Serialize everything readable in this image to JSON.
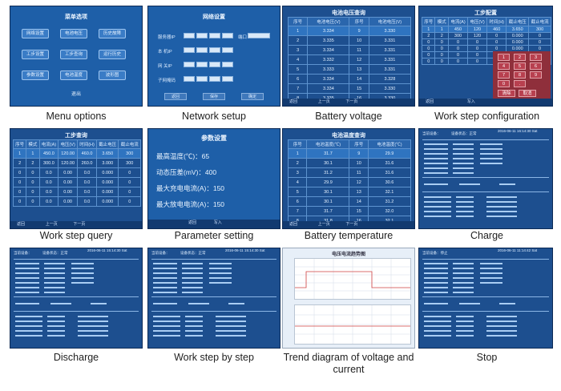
{
  "captions": {
    "menu": "Menu options",
    "network": "Network setup",
    "battery_voltage": "Battery voltage",
    "work_step_config": "Work step configuration",
    "work_step_query": "Work step query",
    "parameter": "Parameter setting",
    "battery_temp": "Battery temperature",
    "charge": "Charge",
    "discharge": "Discharge",
    "work_step_by_step": "Work step by step",
    "trend": "Trend diagram of voltage and current",
    "stop": "Stop"
  },
  "menu_screen": {
    "title": "菜单选项",
    "buttons": [
      "网络设置",
      "电池电压",
      "历史故障",
      "工步设置",
      "工步查询",
      "运行历史",
      "参数设置",
      "电池温度",
      "波形图"
    ],
    "footer": "退出"
  },
  "network_screen": {
    "title": "网络设置",
    "rows": [
      "服务器IP",
      "本 机IP",
      "网 关IP",
      "子网掩码"
    ],
    "port_label": "端口",
    "buttons": [
      "返回",
      "保存",
      "确定"
    ]
  },
  "voltage_screen": {
    "title": "电池电压查询",
    "headers": [
      "序号",
      "电池电压(V)",
      "序号",
      "电池电压(V)"
    ],
    "rows": [
      [
        "1",
        "3.334",
        "9",
        "3.330"
      ],
      [
        "2",
        "3.335",
        "10",
        "3.331"
      ],
      [
        "3",
        "3.334",
        "11",
        "3.331"
      ],
      [
        "4",
        "3.332",
        "12",
        "3.331"
      ],
      [
        "5",
        "3.333",
        "13",
        "3.331"
      ],
      [
        "6",
        "3.334",
        "14",
        "3.328"
      ],
      [
        "7",
        "3.334",
        "15",
        "3.330"
      ],
      [
        "8",
        "3.335",
        "16",
        "3.330"
      ]
    ],
    "footer": [
      "返回",
      "上一页",
      "下一页"
    ]
  },
  "config_screen": {
    "title": "工步配置",
    "headers": [
      "序号",
      "模式",
      "电流(A)",
      "电压(V)",
      "时间(H)",
      "截止电压",
      "截止电流"
    ],
    "rows": [
      [
        "1",
        "1",
        "450",
        "120",
        "460",
        "3.650",
        "300"
      ],
      [
        "2",
        "2",
        "300",
        "120",
        "0",
        "0.000",
        "0"
      ],
      [
        "0",
        "0",
        "0",
        "0",
        "0",
        "0.000",
        "0"
      ],
      [
        "0",
        "0",
        "0",
        "0",
        "0",
        "0.000",
        "0"
      ],
      [
        "0",
        "0",
        "0",
        "0",
        "0",
        "0.000",
        "0"
      ],
      [
        "0",
        "0",
        "0",
        "0",
        "0",
        "0.000",
        "0"
      ]
    ],
    "keys": [
      "1",
      "2",
      "3",
      "4",
      "5",
      "6",
      "7",
      "8",
      "9",
      "0",
      ".",
      "清除",
      "取消"
    ],
    "footer": [
      "返回",
      "写入"
    ]
  },
  "query_screen": {
    "title": "工步查询",
    "headers": [
      "序号",
      "模式",
      "电流(A)",
      "电压(V)",
      "时间(H)",
      "截止电压",
      "截止电流"
    ],
    "rows": [
      [
        "1",
        "1",
        "450.0",
        "120.00",
        "460.0",
        "3.650",
        "300"
      ],
      [
        "2",
        "2",
        "300.0",
        "120.00",
        "260.0",
        "3.000",
        "300"
      ],
      [
        "0",
        "0",
        "0.0",
        "0.00",
        "0.0",
        "0.000",
        "0"
      ],
      [
        "0",
        "0",
        "0.0",
        "0.00",
        "0.0",
        "0.000",
        "0"
      ],
      [
        "0",
        "0",
        "0.0",
        "0.00",
        "0.0",
        "0.000",
        "0"
      ],
      [
        "0",
        "0",
        "0.0",
        "0.00",
        "0.0",
        "0.000",
        "0"
      ]
    ],
    "footer": [
      "返回",
      "上一页",
      "下一页"
    ]
  },
  "param_screen": {
    "title": "参数设置",
    "rows": [
      {
        "label": "最高温度(℃)：",
        "value": "65"
      },
      {
        "label": "动态压差(mV)：",
        "value": "400"
      },
      {
        "label": "最大充电电流(A)：",
        "value": "150"
      },
      {
        "label": "最大放电电流(A)：",
        "value": "150"
      }
    ],
    "footer": [
      "返回",
      "写入"
    ]
  },
  "temp_screen": {
    "title": "电池温度查询",
    "headers": [
      "序号",
      "电池温度(℃)",
      "序号",
      "电池温度(℃)"
    ],
    "rows": [
      [
        "1",
        "31.7",
        "9",
        "29.9"
      ],
      [
        "2",
        "30.1",
        "10",
        "31.6"
      ],
      [
        "3",
        "31.2",
        "11",
        "31.6"
      ],
      [
        "4",
        "29.9",
        "12",
        "30.6"
      ],
      [
        "5",
        "30.1",
        "13",
        "32.1"
      ],
      [
        "6",
        "30.1",
        "14",
        "31.2"
      ],
      [
        "7",
        "31.7",
        "15",
        "32.0"
      ],
      [
        "8",
        "31.8",
        "16",
        "32.1"
      ]
    ],
    "footer": [
      "返回",
      "上一页",
      "下一页"
    ]
  },
  "charge_screen": {
    "header_left": "当前设备：",
    "header_mid": "设备状态：正常",
    "time": "2016-06-11 16:14:30 Sat"
  },
  "discharge_screen": {
    "header_left": "当前设备：",
    "header_mid": "设备状态：正常",
    "time": "2016-06-11 15:14:30 Sat"
  },
  "step_screen": {
    "header_left": "当前设备：",
    "header_mid": "设备状态：正常",
    "time": "2016-06-11 15:14:30 Sat"
  },
  "trend_screen": {
    "title": "电压电流趋势图"
  },
  "stop_screen": {
    "header_left": "当前设备：停止",
    "time": "2016-06-11 11:14:42 Sat"
  },
  "colors": {
    "screen_blue": "#1d4f8f",
    "keypad_red": "#b8404f",
    "trend_line": "#d04040"
  }
}
